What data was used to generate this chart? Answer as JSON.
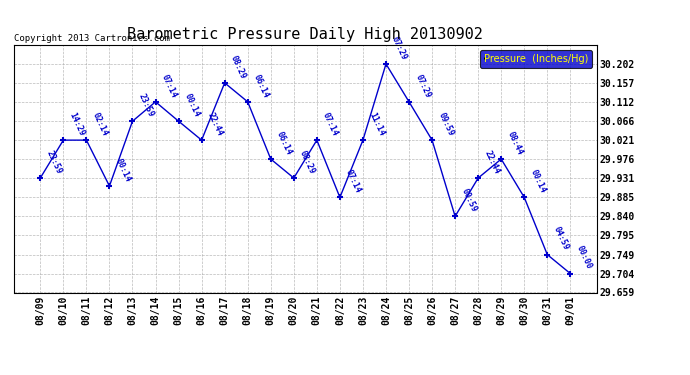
{
  "title": "Barometric Pressure Daily High 20130902",
  "copyright": "Copyright 2013 Cartronics.com",
  "legend_label": "Pressure  (Inches/Hg)",
  "x_labels": [
    "08/09",
    "08/10",
    "08/11",
    "08/12",
    "08/13",
    "08/14",
    "08/15",
    "08/16",
    "08/17",
    "08/18",
    "08/19",
    "08/20",
    "08/21",
    "08/22",
    "08/23",
    "08/24",
    "08/25",
    "08/26",
    "08/27",
    "08/28",
    "08/29",
    "08/30",
    "08/31",
    "09/01"
  ],
  "y_values": [
    29.931,
    30.021,
    30.021,
    29.912,
    30.066,
    30.112,
    30.066,
    30.021,
    30.157,
    30.112,
    29.976,
    29.931,
    30.021,
    29.885,
    30.021,
    30.202,
    30.112,
    30.021,
    29.84,
    29.931,
    29.976,
    29.885,
    29.749,
    29.704
  ],
  "point_labels": [
    "23:59",
    "14:29",
    "02:14",
    "00:14",
    "23:59",
    "07:14",
    "00:14",
    "22:44",
    "08:29",
    "06:14",
    "06:14",
    "08:29",
    "07:14",
    "07:14",
    "11:14",
    "07:29",
    "07:29",
    "09:59",
    "00:59",
    "22:44",
    "08:44",
    "00:14",
    "04:59",
    "00:00"
  ],
  "ylim_min": 29.659,
  "ylim_max": 30.247,
  "yticks": [
    29.659,
    29.704,
    29.749,
    29.795,
    29.84,
    29.885,
    29.931,
    29.976,
    30.021,
    30.066,
    30.112,
    30.157,
    30.202
  ],
  "line_color": "#0000cc",
  "marker_color": "#0000cc",
  "bg_color": "#ffffff",
  "grid_color": "#aaaaaa",
  "title_color": "#000000",
  "copyright_color": "#000000",
  "legend_bg": "#0000cc",
  "legend_text_color": "#ffff00"
}
